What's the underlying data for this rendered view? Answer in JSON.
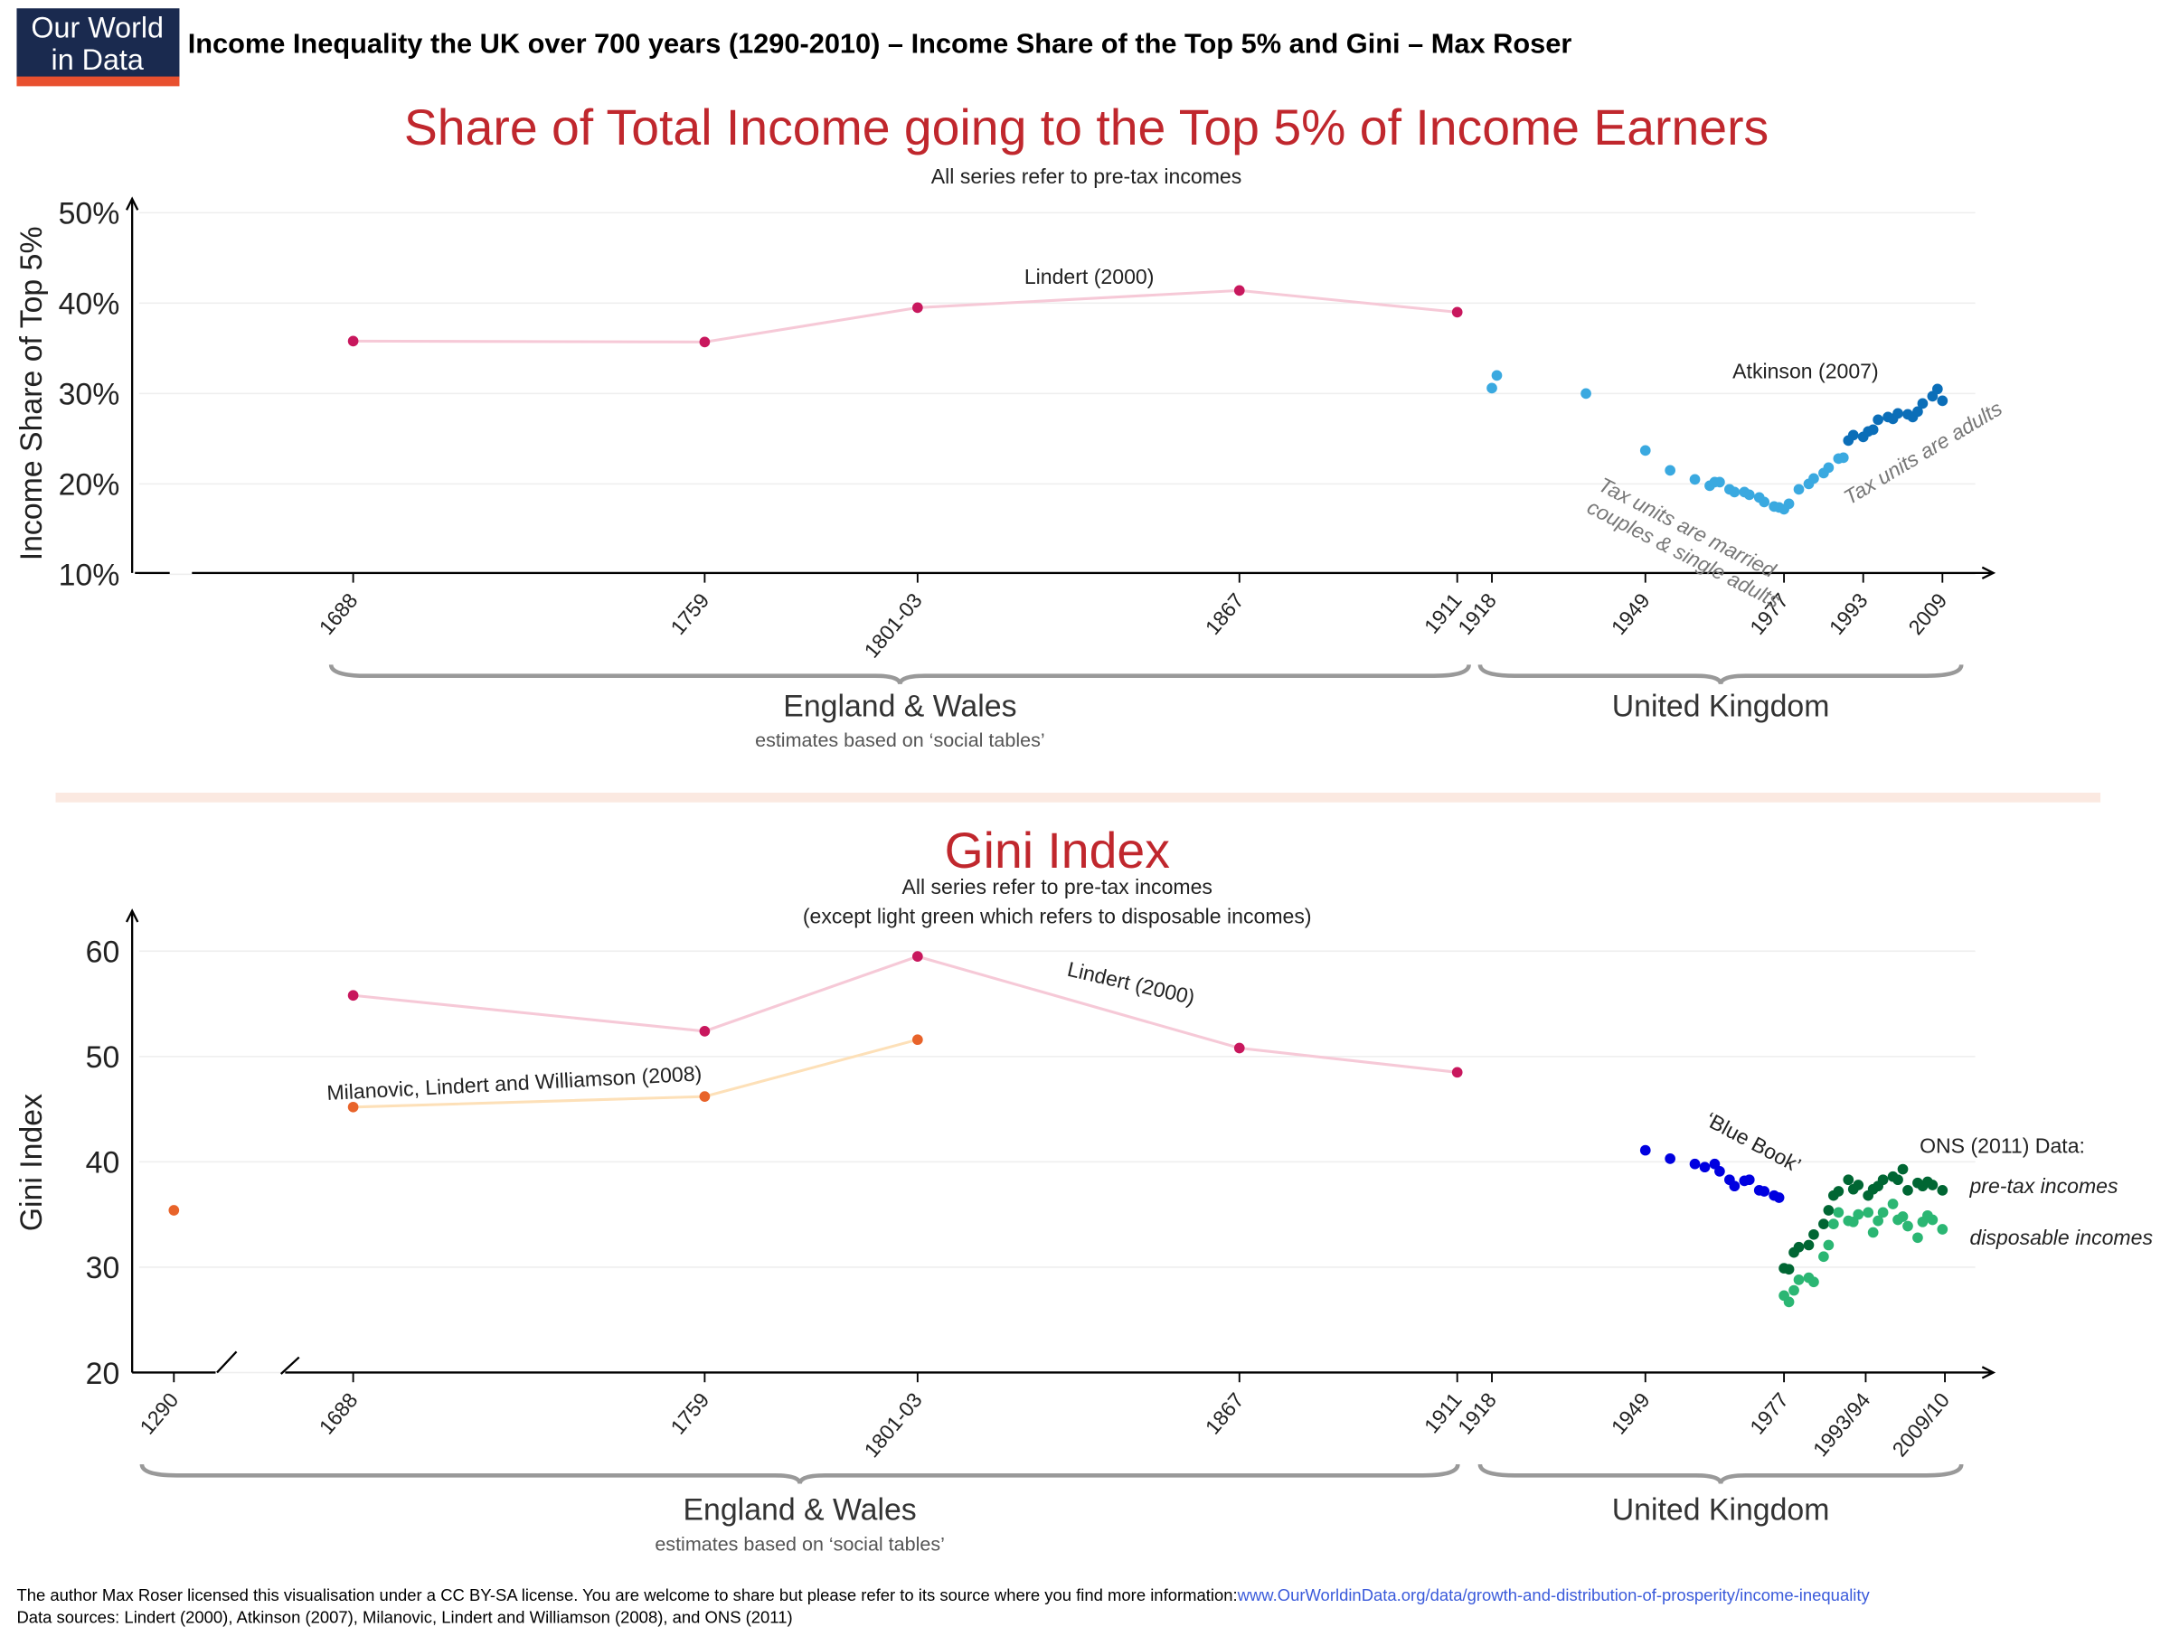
{
  "header": {
    "logo": [
      "Our World",
      "in Data"
    ],
    "title": "Income Inequality the UK over 700 years (1290-2010) – Income Share of the Top 5% and Gini – Max Roser"
  },
  "chart_data": [
    {
      "type": "line",
      "title": "Share of Total Income going to the Top 5% of Income Earners",
      "subtitle": [
        "All series refer to pre-tax incomes"
      ],
      "y_label": "Income Share of Top 5%",
      "xlim": [
        1656,
        2019
      ],
      "ylim": [
        10,
        50
      ],
      "yticks": [
        {
          "value": 10,
          "label": "10%"
        },
        {
          "value": 20,
          "label": "20%"
        },
        {
          "value": 30,
          "label": "30%"
        },
        {
          "value": 40,
          "label": "40%"
        },
        {
          "value": 50,
          "label": "50%"
        }
      ],
      "xticks": [
        1688,
        1759,
        {
          "value": 1802,
          "label": "1801-03"
        },
        1867,
        1911,
        1918,
        1949,
        1977,
        1993,
        2009
      ],
      "grid": true,
      "series": [
        {
          "name": "Lindert (2000)",
          "mode": "lines+markers",
          "color": "#c8175d",
          "line_color": "#f6c9d7",
          "x": [
            1688,
            1759,
            1802,
            1867,
            1911
          ],
          "values": [
            35.8,
            35.7,
            39.5,
            41.4,
            39.0
          ]
        },
        {
          "name": "Atkinson (2007)",
          "mode": "markers",
          "color": "#3aa9e0",
          "x": [
            1918,
            1919,
            1937,
            1949,
            1954,
            1959,
            1962,
            1963,
            1964,
            1966,
            1967,
            1969,
            1970,
            1972,
            1973,
            1975,
            1976,
            1977,
            1978,
            1980,
            1982,
            1983,
            1985,
            1986,
            1988,
            1989
          ],
          "values": [
            30.6,
            32.0,
            30.0,
            23.7,
            21.5,
            20.5,
            19.8,
            20.2,
            20.2,
            19.4,
            19.1,
            19.1,
            18.8,
            18.5,
            18.0,
            17.5,
            17.4,
            17.2,
            17.8,
            19.4,
            20.0,
            20.6,
            21.2,
            21.8,
            22.8,
            22.9
          ]
        },
        {
          "mode": "markers",
          "color": "#0b6eb8",
          "x": [
            1990,
            1991,
            1993,
            1994,
            1995,
            1996,
            1998,
            1999,
            2000,
            2002,
            2003,
            2004,
            2005,
            2007,
            2008,
            2009
          ],
          "values": [
            24.8,
            25.4,
            25.2,
            25.8,
            26.0,
            27.1,
            27.4,
            27.2,
            27.8,
            27.7,
            27.4,
            28.0,
            28.9,
            29.7,
            30.5,
            29.2
          ]
        }
      ],
      "annotations": [
        {
          "lines": [
            "Tax units are married",
            "couples & single adults"
          ]
        },
        {
          "lines": [
            "Tax units are adults"
          ]
        }
      ],
      "regions": [
        {
          "label": "England & Wales",
          "note": "estimates based on ‘social tables’"
        },
        {
          "label": "United Kingdom"
        }
      ]
    },
    {
      "type": "line",
      "title": "Gini Index",
      "subtitle": [
        "All series refer to pre-tax incomes",
        "(except light green which refers to disposable incomes)"
      ],
      "y_label": "Gini Index",
      "xlim": [
        1284,
        2019
      ],
      "axis_break": [
        1296,
        1656
      ],
      "ylim": [
        20,
        60
      ],
      "yticks": [
        20,
        30,
        40,
        50,
        60
      ],
      "xticks": [
        1290,
        1688,
        1759,
        {
          "value": 1802,
          "label": "1801-03"
        },
        1867,
        1911,
        1918,
        1949,
        1977,
        {
          "value": 1993.5,
          "label": "1993/94"
        },
        {
          "value": 2009.5,
          "label": "2009/10"
        }
      ],
      "grid": true,
      "series": [
        {
          "name": "Lindert (2000)",
          "mode": "lines+markers",
          "color": "#c8175d",
          "line_color": "#f6c9d7",
          "x": [
            1688,
            1759,
            1802,
            1867,
            1911
          ],
          "values": [
            55.8,
            52.4,
            59.5,
            50.8,
            48.5
          ]
        },
        {
          "name": "Milanovic, Lindert and Williamson (2008)",
          "mode": "lines+markers",
          "color": "#e8632a",
          "line_color": "#fde0b8",
          "x": [
            1290,
            1688,
            1759,
            1802
          ],
          "values": [
            35.4,
            45.2,
            46.2,
            51.6
          ]
        },
        {
          "name": "‘Blue Book’",
          "mode": "markers",
          "color": "#0000e0",
          "x": [
            1949,
            1954,
            1959,
            1961,
            1963,
            1964,
            1966,
            1967,
            1969,
            1970,
            1972,
            1973,
            1975,
            1976
          ],
          "values": [
            41.1,
            40.3,
            39.8,
            39.5,
            39.8,
            39.1,
            38.3,
            37.7,
            38.2,
            38.3,
            37.3,
            37.2,
            36.8,
            36.6
          ]
        },
        {
          "name": "pre-tax incomes",
          "mode": "markers",
          "color": "#006633",
          "x": [
            1977,
            1978,
            1979,
            1980,
            1982,
            1983,
            1985,
            1986,
            1987,
            1988,
            1990,
            1991,
            1992,
            1994,
            1995,
            1996,
            1997,
            1999,
            2000,
            2001,
            2002,
            2004,
            2005,
            2006,
            2007,
            2009
          ],
          "values": [
            29.9,
            29.8,
            31.4,
            31.9,
            32.1,
            33.1,
            34.1,
            35.4,
            36.8,
            37.2,
            38.3,
            37.4,
            37.8,
            36.8,
            37.4,
            37.7,
            38.3,
            38.6,
            38.3,
            39.3,
            37.3,
            38.0,
            37.7,
            38.1,
            37.8,
            37.3
          ]
        },
        {
          "name": "disposable incomes",
          "mode": "markers",
          "color": "#2bb673",
          "x": [
            1977,
            1978,
            1979,
            1980,
            1982,
            1983,
            1985,
            1986,
            1987,
            1988,
            1990,
            1991,
            1992,
            1994,
            1995,
            1996,
            1997,
            1999,
            2000,
            2001,
            2002,
            2004,
            2005,
            2006,
            2007,
            2009
          ],
          "values": [
            27.3,
            26.7,
            27.8,
            28.8,
            29.0,
            28.6,
            31.0,
            32.1,
            34.1,
            35.2,
            34.4,
            34.3,
            35.0,
            35.2,
            33.3,
            34.4,
            35.2,
            36.0,
            34.5,
            34.8,
            33.9,
            32.8,
            34.3,
            34.9,
            34.5,
            33.6
          ]
        }
      ],
      "annotations": [
        {
          "lines": [
            "ONS (2011) Data:"
          ]
        }
      ],
      "regions": [
        {
          "label": "England & Wales",
          "note": "estimates based on ‘social tables’"
        },
        {
          "label": "United Kingdom"
        }
      ]
    }
  ],
  "footer": {
    "license": "The author Max Roser licensed this visualisation under a CC BY-SA license. You are  welcome to share but please refer to its source where you find more information: ",
    "link": "www.OurWorldinData.org/data/growth-and-distribution-of-prosperity/income-inequality",
    "sources": "Data sources: Lindert (2000), Atkinson (2007), Milanovic, Lindert and Williamson (2008), and ONS (2011)"
  }
}
